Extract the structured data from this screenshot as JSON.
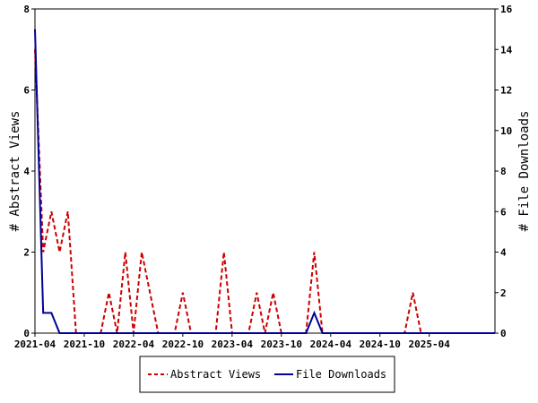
{
  "chart_data": {
    "type": "line",
    "x_tick_labels": [
      "2021-04",
      "2021-10",
      "2022-04",
      "2022-10",
      "2023-04",
      "2023-10",
      "2024-04",
      "2024-10",
      "2025-04"
    ],
    "x_month_index_range": [
      0,
      56
    ],
    "x_tick_month_index": [
      0,
      6,
      12,
      18,
      24,
      30,
      36,
      42,
      48
    ],
    "left_axis": {
      "label": "# Abstract Views",
      "ylim": [
        0,
        8
      ],
      "ticks": [
        "0",
        "2",
        "4",
        "6",
        "8"
      ]
    },
    "right_axis": {
      "label": "# File Downloads",
      "ylim": [
        0,
        16
      ],
      "ticks": [
        "0",
        "2",
        "4",
        "6",
        "8",
        "10",
        "12",
        "14",
        "16"
      ]
    },
    "series": [
      {
        "name": "Abstract Views",
        "axis": "left",
        "color": "#cc0000",
        "style": "dashed",
        "month_index": [
          0,
          1,
          2,
          3,
          4,
          5,
          6,
          7,
          8,
          9,
          10,
          11,
          12,
          13,
          14,
          15,
          16,
          17,
          18,
          19,
          20,
          21,
          22,
          23,
          24,
          25,
          26,
          27,
          28,
          29,
          30,
          31,
          32,
          33,
          34,
          35,
          36,
          37,
          38,
          39,
          40,
          41,
          42,
          43,
          44,
          45,
          46,
          47,
          48,
          49,
          50,
          51,
          52,
          53,
          54,
          55,
          56
        ],
        "values": [
          7,
          2,
          3,
          2,
          3,
          0,
          0,
          0,
          0,
          1,
          0,
          2,
          0,
          2,
          1,
          0,
          0,
          0,
          1,
          0,
          0,
          0,
          0,
          2,
          0,
          0,
          0,
          1,
          0,
          1,
          0,
          0,
          0,
          0,
          2,
          0,
          0,
          0,
          0,
          0,
          0,
          0,
          0,
          0,
          0,
          0,
          1,
          0,
          0,
          0,
          0,
          0,
          0,
          0,
          0,
          0,
          0
        ]
      },
      {
        "name": "File Downloads",
        "axis": "right",
        "color": "#000099",
        "style": "solid",
        "month_index": [
          0,
          1,
          2,
          3,
          4,
          5,
          6,
          7,
          8,
          9,
          10,
          11,
          12,
          13,
          14,
          15,
          16,
          17,
          18,
          19,
          20,
          21,
          22,
          23,
          24,
          25,
          26,
          27,
          28,
          29,
          30,
          31,
          32,
          33,
          34,
          35,
          36,
          37,
          38,
          39,
          40,
          41,
          42,
          43,
          44,
          45,
          46,
          47,
          48,
          49,
          50,
          51,
          52,
          53,
          54,
          55,
          56
        ],
        "values": [
          15,
          1,
          1,
          0,
          0,
          0,
          0,
          0,
          0,
          0,
          0,
          0,
          0,
          0,
          0,
          0,
          0,
          0,
          0,
          0,
          0,
          0,
          0,
          0,
          0,
          0,
          0,
          0,
          0,
          0,
          0,
          0,
          0,
          0,
          1,
          0,
          0,
          0,
          0,
          0,
          0,
          0,
          0,
          0,
          0,
          0,
          0,
          0,
          0,
          0,
          0,
          0,
          0,
          0,
          0,
          0,
          0
        ]
      }
    ],
    "legend": {
      "position": "bottom-center",
      "entries": [
        "Abstract Views",
        "File Downloads"
      ]
    },
    "grid": false
  }
}
